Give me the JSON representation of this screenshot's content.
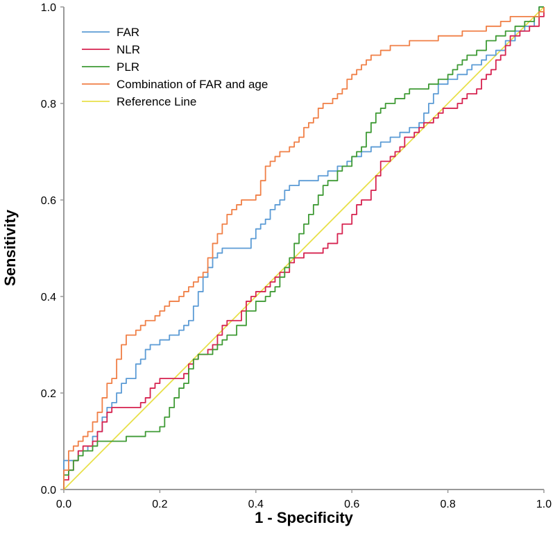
{
  "chart_data": {
    "type": "line",
    "title": "",
    "xlabel": "1 - Specificity",
    "ylabel": "Sensitivity",
    "xlim": [
      0,
      1
    ],
    "ylim": [
      0,
      1
    ],
    "x_ticks": [
      "0.0",
      "0.2",
      "0.4",
      "0.6",
      "0.8",
      "1.0"
    ],
    "y_ticks": [
      "0.0",
      "0.2",
      "0.4",
      "0.6",
      "0.8",
      "1.0"
    ],
    "legend_position": "top-left",
    "series": [
      {
        "name": "FAR",
        "color": "#5b9bd5",
        "points": [
          [
            0,
            0
          ],
          [
            0,
            0.06
          ],
          [
            0.02,
            0.06
          ],
          [
            0.03,
            0.08
          ],
          [
            0.05,
            0.09
          ],
          [
            0.06,
            0.11
          ],
          [
            0.07,
            0.12
          ],
          [
            0.08,
            0.15
          ],
          [
            0.09,
            0.17
          ],
          [
            0.1,
            0.18
          ],
          [
            0.11,
            0.2
          ],
          [
            0.12,
            0.22
          ],
          [
            0.13,
            0.23
          ],
          [
            0.15,
            0.26
          ],
          [
            0.16,
            0.27
          ],
          [
            0.17,
            0.29
          ],
          [
            0.18,
            0.3
          ],
          [
            0.2,
            0.31
          ],
          [
            0.22,
            0.32
          ],
          [
            0.24,
            0.33
          ],
          [
            0.25,
            0.34
          ],
          [
            0.26,
            0.35
          ],
          [
            0.27,
            0.38
          ],
          [
            0.28,
            0.41
          ],
          [
            0.29,
            0.44
          ],
          [
            0.3,
            0.46
          ],
          [
            0.31,
            0.48
          ],
          [
            0.32,
            0.49
          ],
          [
            0.33,
            0.5
          ],
          [
            0.35,
            0.5
          ],
          [
            0.37,
            0.5
          ],
          [
            0.38,
            0.5
          ],
          [
            0.39,
            0.52
          ],
          [
            0.4,
            0.54
          ],
          [
            0.41,
            0.55
          ],
          [
            0.42,
            0.56
          ],
          [
            0.43,
            0.58
          ],
          [
            0.44,
            0.59
          ],
          [
            0.45,
            0.6
          ],
          [
            0.46,
            0.62
          ],
          [
            0.47,
            0.63
          ],
          [
            0.49,
            0.64
          ],
          [
            0.51,
            0.64
          ],
          [
            0.53,
            0.65
          ],
          [
            0.55,
            0.66
          ],
          [
            0.57,
            0.67
          ],
          [
            0.59,
            0.68
          ],
          [
            0.6,
            0.69
          ],
          [
            0.62,
            0.7
          ],
          [
            0.64,
            0.71
          ],
          [
            0.66,
            0.72
          ],
          [
            0.68,
            0.73
          ],
          [
            0.7,
            0.74
          ],
          [
            0.72,
            0.75
          ],
          [
            0.74,
            0.76
          ],
          [
            0.75,
            0.78
          ],
          [
            0.76,
            0.8
          ],
          [
            0.77,
            0.82
          ],
          [
            0.78,
            0.84
          ],
          [
            0.8,
            0.85
          ],
          [
            0.82,
            0.86
          ],
          [
            0.84,
            0.87
          ],
          [
            0.85,
            0.88
          ],
          [
            0.87,
            0.89
          ],
          [
            0.88,
            0.9
          ],
          [
            0.9,
            0.91
          ],
          [
            0.92,
            0.93
          ],
          [
            0.94,
            0.95
          ],
          [
            0.96,
            0.96
          ],
          [
            0.98,
            0.98
          ],
          [
            0.99,
            1.0
          ],
          [
            1.0,
            1.0
          ]
        ]
      },
      {
        "name": "NLR",
        "color": "#d6224f",
        "points": [
          [
            0,
            0
          ],
          [
            0,
            0.02
          ],
          [
            0.01,
            0.04
          ],
          [
            0.02,
            0.06
          ],
          [
            0.03,
            0.08
          ],
          [
            0.04,
            0.09
          ],
          [
            0.06,
            0.1
          ],
          [
            0.07,
            0.12
          ],
          [
            0.08,
            0.14
          ],
          [
            0.09,
            0.16
          ],
          [
            0.1,
            0.17
          ],
          [
            0.12,
            0.17
          ],
          [
            0.14,
            0.17
          ],
          [
            0.16,
            0.18
          ],
          [
            0.17,
            0.19
          ],
          [
            0.18,
            0.21
          ],
          [
            0.19,
            0.22
          ],
          [
            0.2,
            0.23
          ],
          [
            0.22,
            0.23
          ],
          [
            0.24,
            0.23
          ],
          [
            0.25,
            0.24
          ],
          [
            0.26,
            0.26
          ],
          [
            0.27,
            0.27
          ],
          [
            0.28,
            0.28
          ],
          [
            0.3,
            0.29
          ],
          [
            0.31,
            0.3
          ],
          [
            0.32,
            0.32
          ],
          [
            0.33,
            0.34
          ],
          [
            0.34,
            0.35
          ],
          [
            0.36,
            0.35
          ],
          [
            0.37,
            0.37
          ],
          [
            0.38,
            0.39
          ],
          [
            0.39,
            0.4
          ],
          [
            0.4,
            0.41
          ],
          [
            0.42,
            0.42
          ],
          [
            0.43,
            0.43
          ],
          [
            0.44,
            0.44
          ],
          [
            0.45,
            0.45
          ],
          [
            0.47,
            0.47
          ],
          [
            0.48,
            0.48
          ],
          [
            0.5,
            0.49
          ],
          [
            0.52,
            0.49
          ],
          [
            0.54,
            0.5
          ],
          [
            0.55,
            0.51
          ],
          [
            0.57,
            0.53
          ],
          [
            0.58,
            0.55
          ],
          [
            0.6,
            0.57
          ],
          [
            0.61,
            0.59
          ],
          [
            0.62,
            0.6
          ],
          [
            0.64,
            0.62
          ],
          [
            0.65,
            0.65
          ],
          [
            0.66,
            0.68
          ],
          [
            0.68,
            0.69
          ],
          [
            0.69,
            0.7
          ],
          [
            0.7,
            0.71
          ],
          [
            0.71,
            0.73
          ],
          [
            0.73,
            0.74
          ],
          [
            0.74,
            0.75
          ],
          [
            0.75,
            0.76
          ],
          [
            0.77,
            0.77
          ],
          [
            0.78,
            0.78
          ],
          [
            0.79,
            0.79
          ],
          [
            0.81,
            0.79
          ],
          [
            0.82,
            0.8
          ],
          [
            0.83,
            0.81
          ],
          [
            0.84,
            0.82
          ],
          [
            0.86,
            0.83
          ],
          [
            0.87,
            0.85
          ],
          [
            0.88,
            0.86
          ],
          [
            0.89,
            0.87
          ],
          [
            0.9,
            0.89
          ],
          [
            0.91,
            0.9
          ],
          [
            0.92,
            0.92
          ],
          [
            0.93,
            0.94
          ],
          [
            0.95,
            0.95
          ],
          [
            0.97,
            0.96
          ],
          [
            0.98,
            0.96
          ],
          [
            0.99,
            0.98
          ],
          [
            1.0,
            1.0
          ]
        ]
      },
      {
        "name": "PLR",
        "color": "#3e9a34",
        "points": [
          [
            0,
            0
          ],
          [
            0,
            0.03
          ],
          [
            0.01,
            0.04
          ],
          [
            0.02,
            0.06
          ],
          [
            0.03,
            0.07
          ],
          [
            0.04,
            0.08
          ],
          [
            0.06,
            0.09
          ],
          [
            0.07,
            0.1
          ],
          [
            0.09,
            0.1
          ],
          [
            0.11,
            0.1
          ],
          [
            0.13,
            0.11
          ],
          [
            0.15,
            0.11
          ],
          [
            0.17,
            0.12
          ],
          [
            0.19,
            0.12
          ],
          [
            0.2,
            0.13
          ],
          [
            0.21,
            0.15
          ],
          [
            0.22,
            0.17
          ],
          [
            0.23,
            0.19
          ],
          [
            0.24,
            0.21
          ],
          [
            0.25,
            0.22
          ],
          [
            0.26,
            0.25
          ],
          [
            0.27,
            0.27
          ],
          [
            0.28,
            0.28
          ],
          [
            0.29,
            0.28
          ],
          [
            0.31,
            0.29
          ],
          [
            0.32,
            0.3
          ],
          [
            0.33,
            0.31
          ],
          [
            0.34,
            0.32
          ],
          [
            0.36,
            0.34
          ],
          [
            0.38,
            0.37
          ],
          [
            0.4,
            0.39
          ],
          [
            0.42,
            0.4
          ],
          [
            0.43,
            0.41
          ],
          [
            0.44,
            0.42
          ],
          [
            0.45,
            0.44
          ],
          [
            0.46,
            0.46
          ],
          [
            0.47,
            0.48
          ],
          [
            0.48,
            0.51
          ],
          [
            0.49,
            0.53
          ],
          [
            0.5,
            0.55
          ],
          [
            0.51,
            0.57
          ],
          [
            0.52,
            0.59
          ],
          [
            0.53,
            0.61
          ],
          [
            0.54,
            0.63
          ],
          [
            0.55,
            0.64
          ],
          [
            0.57,
            0.66
          ],
          [
            0.58,
            0.67
          ],
          [
            0.6,
            0.69
          ],
          [
            0.61,
            0.7
          ],
          [
            0.62,
            0.71
          ],
          [
            0.63,
            0.74
          ],
          [
            0.64,
            0.76
          ],
          [
            0.65,
            0.78
          ],
          [
            0.66,
            0.79
          ],
          [
            0.67,
            0.8
          ],
          [
            0.69,
            0.81
          ],
          [
            0.71,
            0.82
          ],
          [
            0.72,
            0.83
          ],
          [
            0.74,
            0.83
          ],
          [
            0.76,
            0.84
          ],
          [
            0.78,
            0.85
          ],
          [
            0.8,
            0.86
          ],
          [
            0.81,
            0.87
          ],
          [
            0.82,
            0.88
          ],
          [
            0.83,
            0.89
          ],
          [
            0.84,
            0.9
          ],
          [
            0.86,
            0.91
          ],
          [
            0.88,
            0.93
          ],
          [
            0.9,
            0.94
          ],
          [
            0.92,
            0.95
          ],
          [
            0.94,
            0.96
          ],
          [
            0.96,
            0.97
          ],
          [
            0.98,
            0.98
          ],
          [
            0.99,
            1.0
          ],
          [
            1.0,
            1.0
          ]
        ]
      },
      {
        "name": "Combination of FAR and age",
        "color": "#f07f46",
        "points": [
          [
            0,
            0
          ],
          [
            0,
            0.04
          ],
          [
            0.01,
            0.08
          ],
          [
            0.02,
            0.09
          ],
          [
            0.03,
            0.1
          ],
          [
            0.04,
            0.11
          ],
          [
            0.05,
            0.12
          ],
          [
            0.06,
            0.14
          ],
          [
            0.07,
            0.16
          ],
          [
            0.08,
            0.19
          ],
          [
            0.09,
            0.22
          ],
          [
            0.1,
            0.23
          ],
          [
            0.11,
            0.27
          ],
          [
            0.12,
            0.3
          ],
          [
            0.13,
            0.32
          ],
          [
            0.15,
            0.33
          ],
          [
            0.16,
            0.34
          ],
          [
            0.17,
            0.35
          ],
          [
            0.19,
            0.36
          ],
          [
            0.2,
            0.37
          ],
          [
            0.21,
            0.38
          ],
          [
            0.22,
            0.39
          ],
          [
            0.24,
            0.4
          ],
          [
            0.25,
            0.41
          ],
          [
            0.26,
            0.42
          ],
          [
            0.27,
            0.43
          ],
          [
            0.28,
            0.44
          ],
          [
            0.29,
            0.45
          ],
          [
            0.3,
            0.48
          ],
          [
            0.31,
            0.51
          ],
          [
            0.32,
            0.53
          ],
          [
            0.33,
            0.55
          ],
          [
            0.34,
            0.57
          ],
          [
            0.35,
            0.58
          ],
          [
            0.36,
            0.59
          ],
          [
            0.37,
            0.6
          ],
          [
            0.39,
            0.6
          ],
          [
            0.4,
            0.61
          ],
          [
            0.41,
            0.64
          ],
          [
            0.42,
            0.67
          ],
          [
            0.43,
            0.68
          ],
          [
            0.44,
            0.69
          ],
          [
            0.45,
            0.7
          ],
          [
            0.47,
            0.71
          ],
          [
            0.48,
            0.72
          ],
          [
            0.49,
            0.73
          ],
          [
            0.5,
            0.75
          ],
          [
            0.51,
            0.76
          ],
          [
            0.52,
            0.77
          ],
          [
            0.53,
            0.79
          ],
          [
            0.54,
            0.8
          ],
          [
            0.56,
            0.81
          ],
          [
            0.57,
            0.82
          ],
          [
            0.58,
            0.83
          ],
          [
            0.59,
            0.85
          ],
          [
            0.6,
            0.86
          ],
          [
            0.61,
            0.87
          ],
          [
            0.62,
            0.88
          ],
          [
            0.63,
            0.89
          ],
          [
            0.64,
            0.9
          ],
          [
            0.66,
            0.91
          ],
          [
            0.68,
            0.92
          ],
          [
            0.7,
            0.92
          ],
          [
            0.72,
            0.93
          ],
          [
            0.75,
            0.93
          ],
          [
            0.78,
            0.94
          ],
          [
            0.8,
            0.94
          ],
          [
            0.83,
            0.95
          ],
          [
            0.86,
            0.95
          ],
          [
            0.88,
            0.96
          ],
          [
            0.9,
            0.96
          ],
          [
            0.91,
            0.97
          ],
          [
            0.93,
            0.98
          ],
          [
            0.95,
            0.98
          ],
          [
            0.97,
            0.98
          ],
          [
            0.99,
            0.99
          ],
          [
            1.0,
            1.0
          ]
        ]
      },
      {
        "name": "Reference Line",
        "color": "#e8e04a",
        "points": [
          [
            0,
            0
          ],
          [
            1,
            1
          ]
        ]
      }
    ]
  }
}
